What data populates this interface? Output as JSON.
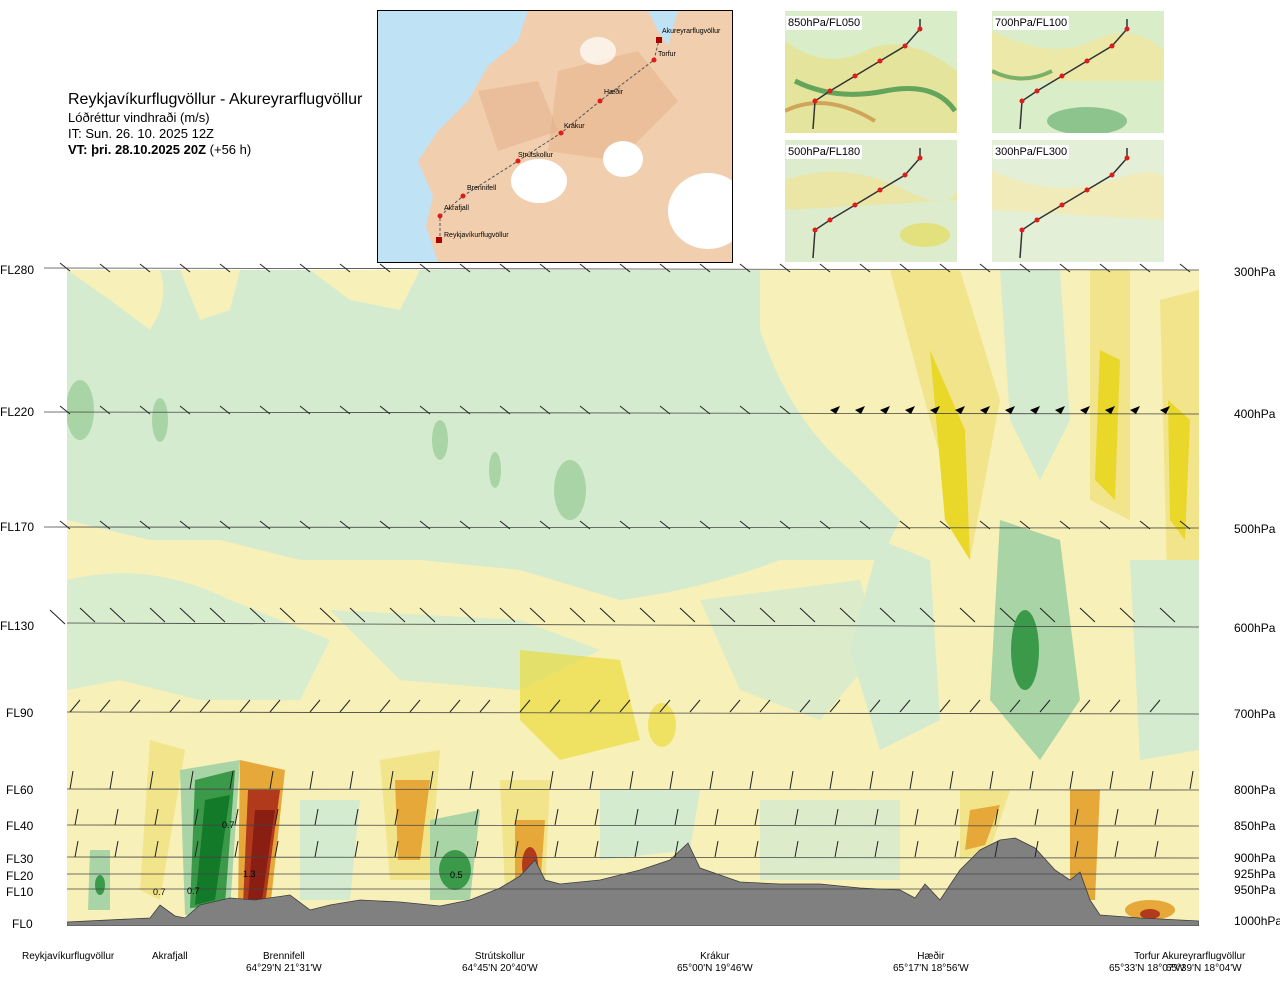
{
  "header": {
    "route": "Reykjavíkurflugvöllur - Akureyrarflugvöllur",
    "product": "Lóðréttur vindhraði (m/s)",
    "issue_time": "IT: Sun. 26. 10. 2025 12Z",
    "valid_time_bold": "VT: þri. 28.10.2025 20Z",
    "valid_time_suffix": "(+56 h)"
  },
  "route_map": {
    "waypoints": [
      "Akureyrarflugvöllur",
      "Torfur",
      "Hæðir",
      "Krákur",
      "Strútskollur",
      "Brennifell",
      "Akrafjall",
      "Reykjavíkurflugvöllur"
    ]
  },
  "mini_maps": [
    {
      "label": "850hPa/FL050"
    },
    {
      "label": "700hPa/FL100"
    },
    {
      "label": "500hPa/FL180"
    },
    {
      "label": "300hPa/FL300"
    }
  ],
  "left_axis": [
    "FL280",
    "FL220",
    "FL170",
    "FL130",
    "FL90",
    "FL60",
    "FL40",
    "FL30",
    "FL20",
    "FL10",
    "FL0"
  ],
  "right_axis": [
    "300hPa",
    "400hPa",
    "500hPa",
    "600hPa",
    "700hPa",
    "800hPa",
    "850hPa",
    "900hPa",
    "925hPa",
    "950hPa",
    "1000hPa"
  ],
  "contour_labels": [
    "0.7",
    "0.7",
    "0.7",
    "1.3",
    "0.5"
  ],
  "bottom_waypoints": [
    {
      "name": "Reykjavíkurflugvöllur",
      "coord": ""
    },
    {
      "name": "Akrafjall",
      "coord": ""
    },
    {
      "name": "Brennifell",
      "coord": "64°29'N 21°31'W"
    },
    {
      "name": "Strútskollur",
      "coord": "64°45'N 20°40'W"
    },
    {
      "name": "Krákur",
      "coord": "65°00'N 19°46'W"
    },
    {
      "name": "Hæðir",
      "coord": "65°17'N 18°56'W"
    },
    {
      "name": "Torfur",
      "coord": "65°33'N 18°07'W"
    },
    {
      "name": "Akureyrarflugvöllur",
      "coord": "65°39'N 18°04'W"
    }
  ],
  "colors": {
    "light_green": "#d4ebd0",
    "mid_green": "#a9d4a6",
    "dark_green": "#3b9a49",
    "deep_green": "#137a2a",
    "pale_yellow": "#f7f0b8",
    "yellow": "#f1e48a",
    "bright_yellow": "#e9d82a",
    "orange": "#e7a83a",
    "red": "#b23a1c",
    "dark_red": "#8a1e12",
    "terrain": "#808080",
    "water": "#bfe2f5",
    "land": "#f1cfae"
  }
}
